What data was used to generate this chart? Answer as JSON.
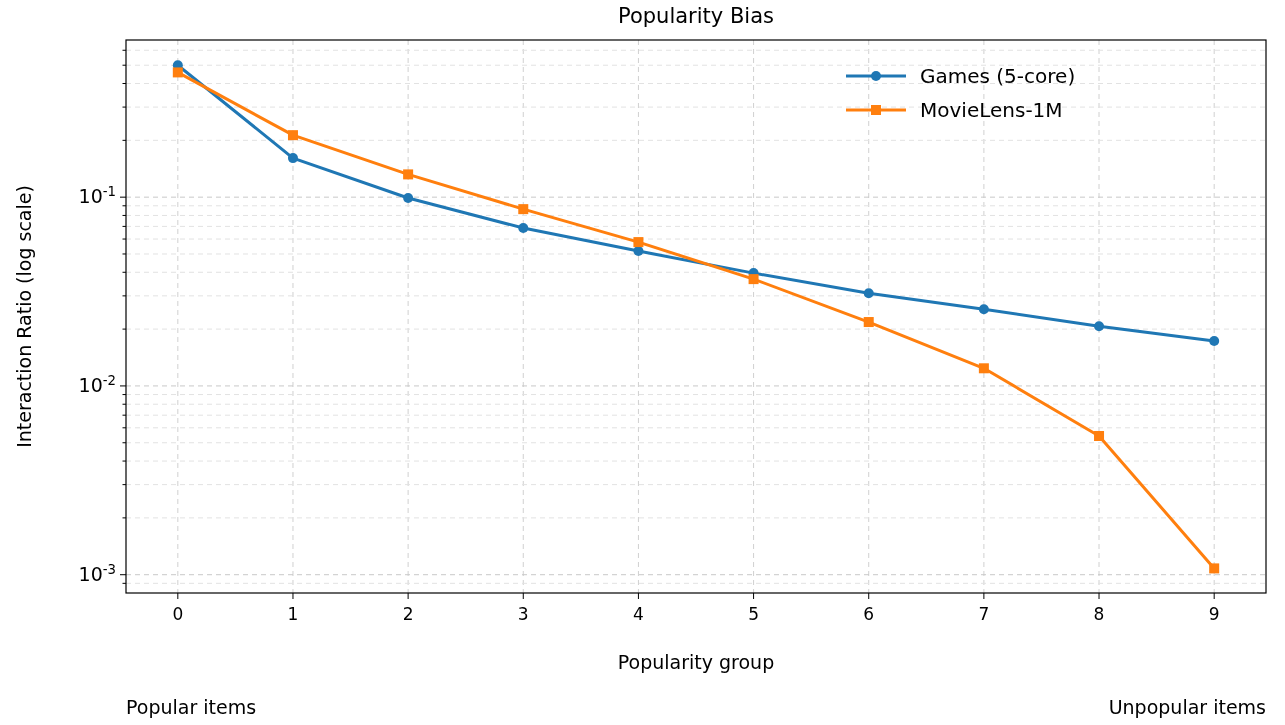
{
  "chart_data": {
    "type": "line",
    "title": "Popularity Bias",
    "xlabel": "Popularity group",
    "ylabel": "Interaction Ratio (log scale)",
    "x": [
      0,
      1,
      2,
      3,
      4,
      5,
      6,
      7,
      8,
      9
    ],
    "series": [
      {
        "name": "Games (5-core)",
        "color": "#1f77b4",
        "marker": "circle",
        "values": [
          0.5,
          0.161,
          0.099,
          0.0686,
          0.0518,
          0.0396,
          0.031,
          0.0255,
          0.0207,
          0.0173
        ]
      },
      {
        "name": "MovieLens-1M",
        "color": "#ff7f0e",
        "marker": "square",
        "values": [
          0.458,
          0.213,
          0.132,
          0.0864,
          0.0578,
          0.0368,
          0.0218,
          0.0124,
          0.00543,
          0.00108
        ]
      }
    ],
    "log": "y",
    "grid": true,
    "legend": "top right",
    "line_style": "solid",
    "xlim": [
      -0.45,
      9.45
    ],
    "xticks": [
      0,
      1,
      2,
      3,
      4,
      5,
      6,
      7,
      8,
      9
    ],
    "ylim": [
      0.0008,
      0.68
    ],
    "yticks": [
      {
        "value": 0.0009,
        "label": null
      },
      {
        "value": 0.001,
        "label": "10$^{-3}$"
      },
      {
        "value": 0.002,
        "label": null
      },
      {
        "value": 0.003,
        "label": null
      },
      {
        "value": 0.004,
        "label": null
      },
      {
        "value": 0.005,
        "label": null
      },
      {
        "value": 0.006,
        "label": null
      },
      {
        "value": 0.007,
        "label": null
      },
      {
        "value": 0.008,
        "label": null
      },
      {
        "value": 0.009,
        "label": null
      },
      {
        "value": 0.01,
        "label": "10$^{-2}$"
      },
      {
        "value": 0.02,
        "label": null
      },
      {
        "value": 0.03,
        "label": null
      },
      {
        "value": 0.04,
        "label": null
      },
      {
        "value": 0.05,
        "label": null
      },
      {
        "value": 0.06,
        "label": null
      },
      {
        "value": 0.07,
        "label": null
      },
      {
        "value": 0.08,
        "label": null
      },
      {
        "value": 0.09,
        "label": null
      },
      {
        "value": 0.1,
        "label": "10$^{-1}$"
      },
      {
        "value": 0.2,
        "label": null
      },
      {
        "value": 0.3,
        "label": null
      },
      {
        "value": 0.4,
        "label": null
      },
      {
        "value": 0.5,
        "label": null
      },
      {
        "value": 0.6,
        "label": null
      }
    ],
    "annotations": [
      "Popular items",
      "Unpopular items"
    ]
  }
}
